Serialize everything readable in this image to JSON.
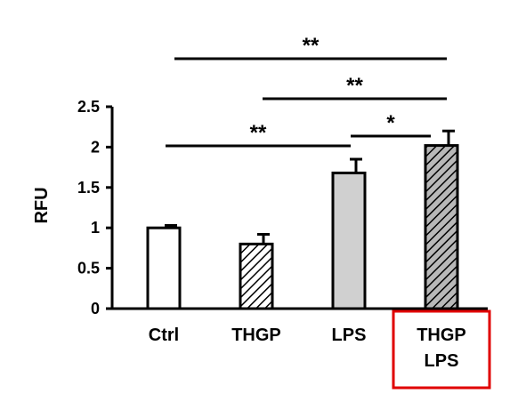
{
  "chart_data": {
    "type": "bar",
    "ylabel": "RFU",
    "xlabel": "",
    "title": "",
    "ylim": [
      0,
      2.5
    ],
    "yticks": [
      "0",
      "0.5",
      "1",
      "1.5",
      "2",
      "2.5"
    ],
    "categories": [
      {
        "lines": [
          "Ctrl"
        ],
        "value": 1.0,
        "error": 0.03,
        "fill": "white",
        "highlighted": false
      },
      {
        "lines": [
          "THGP"
        ],
        "value": 0.8,
        "error": 0.12,
        "fill": "hatched",
        "highlighted": false
      },
      {
        "lines": [
          "LPS"
        ],
        "value": 1.68,
        "error": 0.17,
        "fill": "gray",
        "highlighted": false
      },
      {
        "lines": [
          "THGP",
          "LPS"
        ],
        "value": 2.02,
        "error": 0.18,
        "fill": "hatched-gray",
        "highlighted": true
      }
    ],
    "significance": [
      {
        "from": 0,
        "to": 3,
        "label": "**"
      },
      {
        "from": 1,
        "to": 3,
        "label": "**"
      },
      {
        "from": 0,
        "to": 2,
        "label": "**"
      },
      {
        "from": 2,
        "to": 3,
        "label": "*"
      }
    ],
    "colors": {
      "gray_fill": "#d0d0d0",
      "hatch_gray_bg": "#b8b8b8",
      "highlight_box": "#e00000",
      "axis": "#000000"
    }
  }
}
